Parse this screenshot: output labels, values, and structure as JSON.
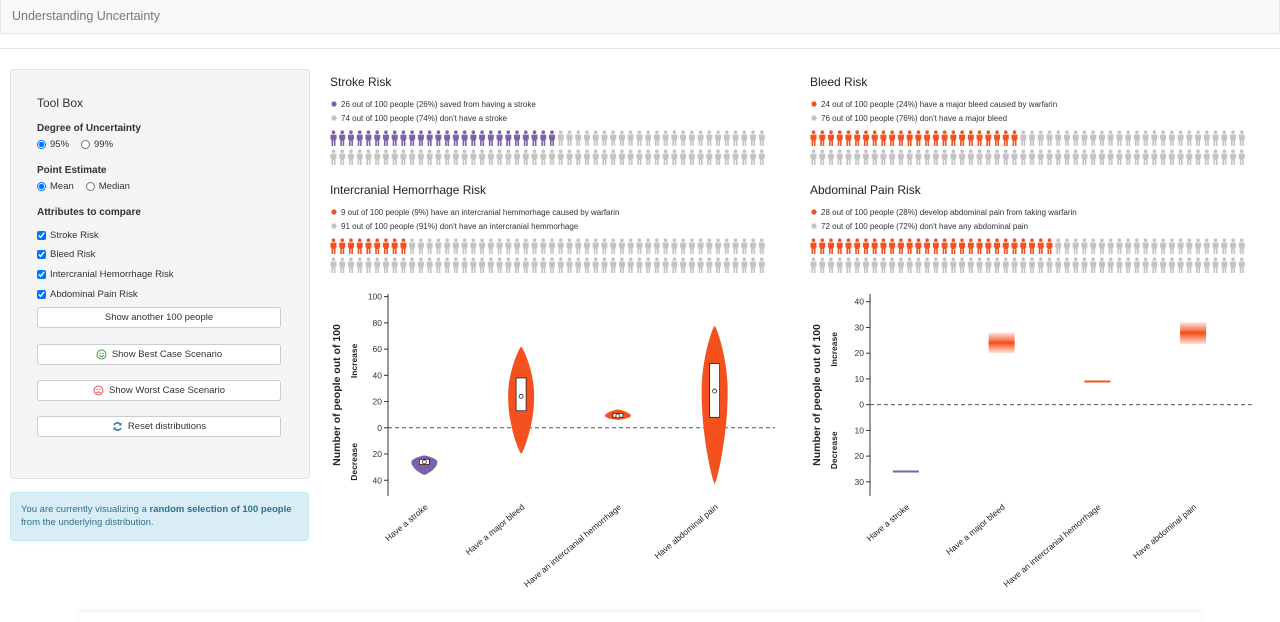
{
  "header": {
    "title": "Understanding Uncertainty"
  },
  "sidebar": {
    "title": "Tool Box",
    "uncertainty": {
      "label": "Degree of Uncertainty",
      "options": [
        "95%",
        "99%"
      ],
      "selected": 0
    },
    "point_estimate": {
      "label": "Point Estimate",
      "options": [
        "Mean",
        "Median"
      ],
      "selected": 0
    },
    "attributes": {
      "label": "Attributes to compare",
      "options": [
        "Stroke Risk",
        "Bleed Risk",
        "Intercranial Hemorrhage Risk",
        "Abdominal Pain Risk"
      ],
      "checked": true
    },
    "buttons": [
      "Show another 100 people",
      "Show Best Case Scenario",
      "Show Worst Case Scenario",
      "Reset distributions"
    ],
    "info": {
      "before": "You are currently visualizing a ",
      "bold": "random selection of 100 people",
      "after": " from the underlying distribution."
    }
  },
  "chart_data": [
    {
      "type": "icon_array",
      "title": "Stroke Risk",
      "series": [
        {
          "name": "26 out of 100 people (26%) saved from having a stroke",
          "color": "#7e62a8",
          "values": [
            26
          ]
        },
        {
          "name": "74 out of 100 people (74%) don't have a stroke",
          "color": "#c4c4c4",
          "values": [
            74
          ]
        }
      ]
    },
    {
      "type": "icon_array",
      "title": "Bleed Risk",
      "series": [
        {
          "name": "24 out of 100 people (24%) have a major bleed caused by warfarin",
          "color": "#f4511e",
          "values": [
            24
          ]
        },
        {
          "name": "76 out of 100 people (76%) don't have a major bleed",
          "color": "#c4c4c4",
          "values": [
            76
          ]
        }
      ]
    },
    {
      "type": "icon_array",
      "title": "Intercranial Hemorrhage Risk",
      "series": [
        {
          "name": "9 out of 100 people (9%) have an intercranial hemmorhage caused by warfarin",
          "color": "#f4511e",
          "values": [
            9
          ]
        },
        {
          "name": "91 out of 100 people (91%) don't have an intercranial hemmorhage",
          "color": "#c4c4c4",
          "values": [
            91
          ]
        }
      ]
    },
    {
      "type": "icon_array",
      "title": "Abdominal Pain Risk",
      "series": [
        {
          "name": "28 out of 100 people (28%) develop abdominal pain from taking warfarin",
          "color": "#f4511e",
          "values": [
            28
          ]
        },
        {
          "name": "72 out of 100 people (72%) don't have any abdominal pain",
          "color": "#c4c4c4",
          "values": [
            72
          ]
        }
      ]
    },
    {
      "type": "violin",
      "y_label": "Number of people out of 100",
      "increase_label": "Increase",
      "decrease_label": "Decrease",
      "categories": [
        "Have a stroke",
        "Have a major bleed",
        "Have an intercranial hemorrhage",
        "Have abdominal pain"
      ],
      "colors": [
        "#7e62a8",
        "#f4511e",
        "#f4511e",
        "#f4511e"
      ],
      "min": [
        -36,
        -20,
        6,
        -43
      ],
      "max": [
        -21,
        62,
        14,
        78
      ],
      "q1": [
        -28,
        13,
        8,
        8
      ],
      "q3": [
        -24,
        38,
        11,
        49
      ],
      "mean": [
        -26,
        24,
        9,
        28
      ],
      "ylim": [
        -52,
        102
      ],
      "yticks": [
        100,
        80,
        60,
        40,
        20,
        0,
        {
          "value": -20,
          "label": "20"
        },
        {
          "value": -40,
          "label": "40"
        }
      ]
    },
    {
      "type": "range",
      "y_label": "Number of people out of 100",
      "increase_label": "Increase",
      "decrease_label": "Decrease",
      "categories": [
        "Have a stroke",
        "Have a major bleed",
        "Have an intercranial hemorrhage",
        "Have abdominal pain"
      ],
      "colors": [
        "#7e62a8",
        "#f4511e",
        "#f4511e",
        "#f4511e"
      ],
      "values": [
        -26,
        24,
        9,
        28
      ],
      "low": [
        -26,
        20,
        9,
        23.5
      ],
      "high": [
        -26,
        28,
        9,
        32
      ],
      "ylim": [
        -35.5,
        43
      ],
      "yticks": [
        40,
        30,
        20,
        10,
        0,
        {
          "value": -10,
          "label": "10"
        },
        {
          "value": -20,
          "label": "20"
        },
        {
          "value": -30,
          "label": "30"
        }
      ]
    }
  ]
}
